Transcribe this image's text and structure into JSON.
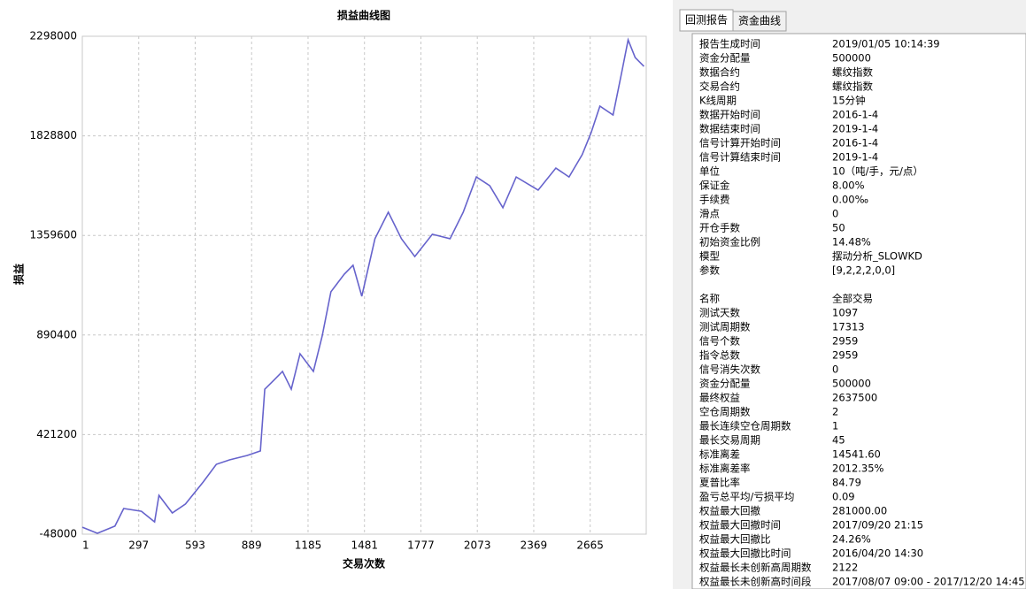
{
  "chart_data": {
    "type": "line",
    "title": "损益曲线图",
    "y_label": "损益",
    "x_label": "交易次数",
    "x": [
      1,
      80,
      172,
      218,
      311,
      380,
      403,
      473,
      542,
      635,
      704,
      773,
      866,
      935,
      958,
      1005,
      1051,
      1097,
      1143,
      1213,
      1259,
      1305,
      1375,
      1421,
      1467,
      1536,
      1606,
      1675,
      1745,
      1837,
      1930,
      1999,
      2068,
      2138,
      2207,
      2277,
      2392,
      2485,
      2554,
      2623,
      2670,
      2716,
      2785,
      2832,
      2864,
      2901,
      2947
    ],
    "series": [
      {
        "color": "#6663cc",
        "values": [
          -15000,
          -44000,
          -10000,
          73000,
          60000,
          10000,
          135000,
          52000,
          94000,
          198000,
          281000,
          302000,
          323000,
          344000,
          635000,
          677000,
          719000,
          635000,
          802000,
          719000,
          885000,
          1094000,
          1177000,
          1219000,
          1073000,
          1344000,
          1469000,
          1344000,
          1260000,
          1365000,
          1344000,
          1469000,
          1635000,
          1594000,
          1490000,
          1635000,
          1573000,
          1677000,
          1635000,
          1740000,
          1844000,
          1969000,
          1927000,
          2135000,
          2281000,
          2198000,
          2156000
        ]
      }
    ],
    "xlim": [
      1,
      2959
    ],
    "xticks": [
      1,
      297,
      593,
      889,
      1185,
      1481,
      1777,
      2073,
      2369,
      2665
    ],
    "ylim": [
      -48000,
      2298000
    ],
    "yticks": [
      -48000,
      421200,
      890400,
      1359600,
      1828800,
      2298000
    ],
    "grid": true
  },
  "tabs": [
    "回测报告",
    "资金曲线"
  ],
  "report": {
    "groups": [
      {
        "rows": [
          [
            "报告生成时间",
            "2019/01/05 10:14:39"
          ],
          [
            "资金分配量",
            "500000"
          ],
          [
            "数据合约",
            "螺纹指数"
          ],
          [
            "交易合约",
            "螺纹指数"
          ],
          [
            "K线周期",
            "15分钟"
          ],
          [
            "数据开始时间",
            "2016-1-4"
          ],
          [
            "数据结束时间",
            "2019-1-4"
          ],
          [
            "信号计算开始时间",
            "2016-1-4"
          ],
          [
            "信号计算结束时间",
            "2019-1-4"
          ],
          [
            "单位",
            "10（吨/手，元/点）"
          ],
          [
            "保证金",
            "8.00%"
          ],
          [
            "手续费",
            "0.00‰"
          ],
          [
            "滑点",
            "0"
          ],
          [
            "开仓手数",
            "50"
          ],
          [
            "初始资金比例",
            "14.48%"
          ],
          [
            "模型",
            "摆动分析_SLOWKD"
          ],
          [
            "参数",
            "[9,2,2,2,0,0]"
          ]
        ]
      },
      {
        "rows": [
          [
            "名称",
            "全部交易"
          ],
          [
            "测试天数",
            "1097"
          ],
          [
            "测试周期数",
            "17313"
          ],
          [
            "信号个数",
            "2959"
          ],
          [
            "指令总数",
            "2959"
          ],
          [
            "信号消失次数",
            "0"
          ],
          [
            "资金分配量",
            "500000"
          ],
          [
            "最终权益",
            "2637500"
          ],
          [
            "空仓周期数",
            "2"
          ],
          [
            "最长连续空仓周期数",
            "1"
          ],
          [
            "最长交易周期",
            "45"
          ],
          [
            "标准离差",
            "14541.60"
          ],
          [
            "标准离差率",
            "2012.35%"
          ],
          [
            "夏普比率",
            "84.79"
          ],
          [
            "盈亏总平均/亏损平均",
            "0.09"
          ],
          [
            "权益最大回撤",
            "281000.00"
          ],
          [
            "权益最大回撤时间",
            "2017/09/20 21:15"
          ],
          [
            "权益最大回撤比",
            "24.26%"
          ],
          [
            "权益最大回撤比时间",
            "2016/04/20 14:30"
          ],
          [
            "权益最长未创新高周期数",
            "2122"
          ],
          [
            "权益最长未创新高时间段",
            "2017/08/07 09:00 - 2017/12/20 14:45"
          ]
        ]
      }
    ]
  }
}
